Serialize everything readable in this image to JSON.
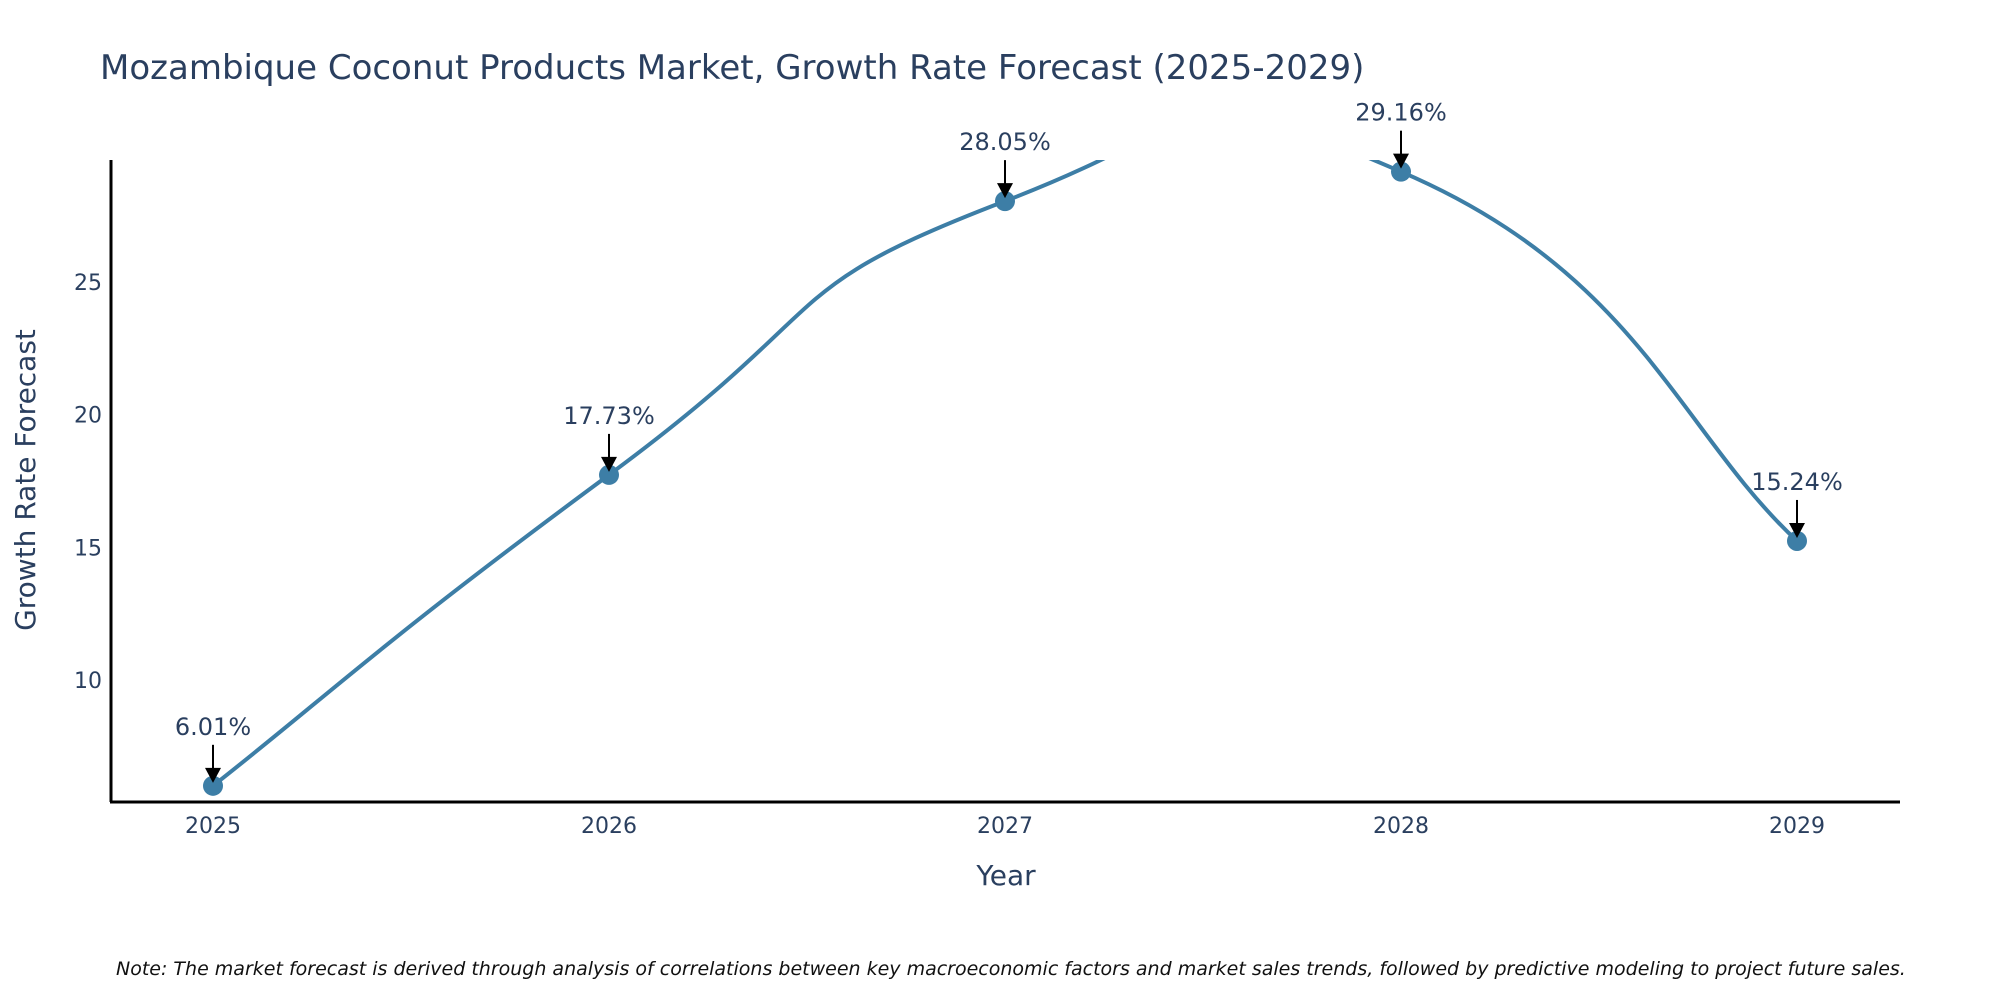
{
  "chart_data": {
    "type": "line",
    "title": "Mozambique Coconut Products Market, Growth Rate Forecast (2025-2029)",
    "xlabel": "Year",
    "ylabel": "Growth Rate Forecast",
    "categories": [
      "2025",
      "2026",
      "2027",
      "2028",
      "2029"
    ],
    "values": [
      6.01,
      17.73,
      28.05,
      29.16,
      15.24
    ],
    "labels": [
      "6.01%",
      "17.73%",
      "28.05%",
      "29.16%",
      "15.24%"
    ],
    "y_ticks": [
      "10",
      "15",
      "20",
      "25"
    ],
    "ylim": [
      5.4,
      29.6
    ],
    "line_color": "#3d7ea6",
    "marker_color": "#3d7ea6",
    "smoothing": "spline",
    "grid": false,
    "note": "Note: The market forecast is derived through analysis of correlations between key macroeconomic factors and market sales trends, followed by predictive modeling to project future sales."
  }
}
